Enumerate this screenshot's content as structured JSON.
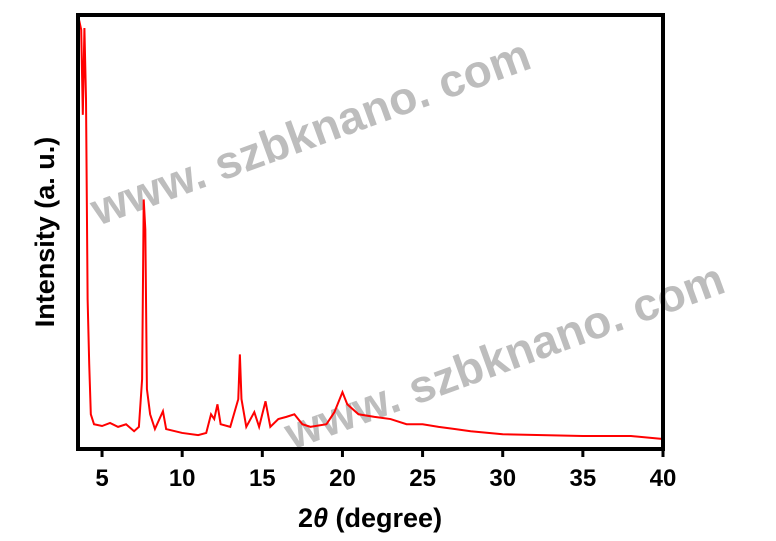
{
  "chart_data": {
    "type": "line",
    "title": "",
    "xlabel_prefix": "2",
    "xlabel_symbol": "θ",
    "xlabel_suffix": " (degree)",
    "ylabel": "Intensity (a. u.)",
    "xlim": [
      3.5,
      40
    ],
    "ylim": [
      0,
      100
    ],
    "xticks": [
      5,
      10,
      15,
      20,
      25,
      30,
      35,
      40
    ],
    "y_ticks_shown": false,
    "grid": false,
    "series_color": "#ff0000",
    "series": [
      {
        "x": [
          3.5,
          3.7,
          3.8,
          3.9,
          4.0,
          4.1,
          4.2,
          4.3,
          4.5,
          5,
          5.5,
          6,
          6.5,
          7,
          7.3,
          7.5,
          7.6,
          7.7,
          7.8,
          8,
          8.3,
          8.8,
          9,
          10,
          11,
          11.5,
          11.8,
          12,
          12.2,
          12.4,
          13,
          13.5,
          13.6,
          13.7,
          14,
          14.5,
          14.8,
          15.2,
          15.5,
          16,
          16.5,
          17,
          17.5,
          18,
          19,
          19.5,
          20,
          20.3,
          21,
          22,
          23,
          24,
          25,
          26,
          27,
          28,
          30,
          35,
          38,
          40
        ],
        "y": [
          100,
          96.6,
          77.0,
          97.0,
          80.5,
          34.5,
          19.5,
          8.0,
          5.7,
          5.3,
          6.0,
          5.1,
          5.7,
          4.1,
          5.1,
          16.1,
          57.5,
          50.6,
          13.8,
          8.0,
          4.6,
          8.7,
          4.6,
          3.7,
          3.2,
          3.7,
          8.0,
          6.9,
          10.3,
          5.7,
          5.1,
          11.5,
          21.8,
          11.5,
          5.1,
          8.5,
          5.1,
          11.0,
          5.1,
          6.9,
          7.4,
          8.0,
          5.7,
          5.1,
          5.7,
          8.5,
          13.1,
          10.3,
          8.0,
          7.4,
          6.9,
          5.7,
          5.7,
          5.1,
          4.6,
          4.1,
          3.4,
          3.0,
          3.0,
          2.3
        ]
      }
    ]
  },
  "watermark": [
    "www. szbknano. com",
    "www. szbknano. com"
  ]
}
